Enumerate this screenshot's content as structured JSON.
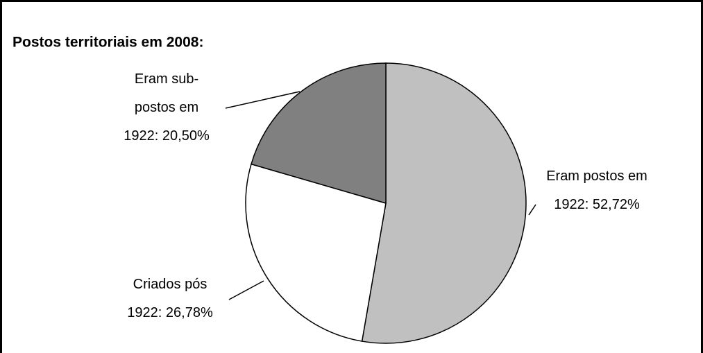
{
  "chart_data": {
    "type": "pie",
    "title": "Postos territoriais em 2008:",
    "categories": [
      "Eram postos em 1922:",
      "Criados pós 1922:",
      "Eram sub-postos em 1922:"
    ],
    "values": [
      52.72,
      26.78,
      20.5
    ],
    "value_labels": [
      "52,72%",
      "26,78%",
      "20,50%"
    ],
    "colors": [
      "#c0c0c0",
      "#ffffff",
      "#808080"
    ]
  }
}
